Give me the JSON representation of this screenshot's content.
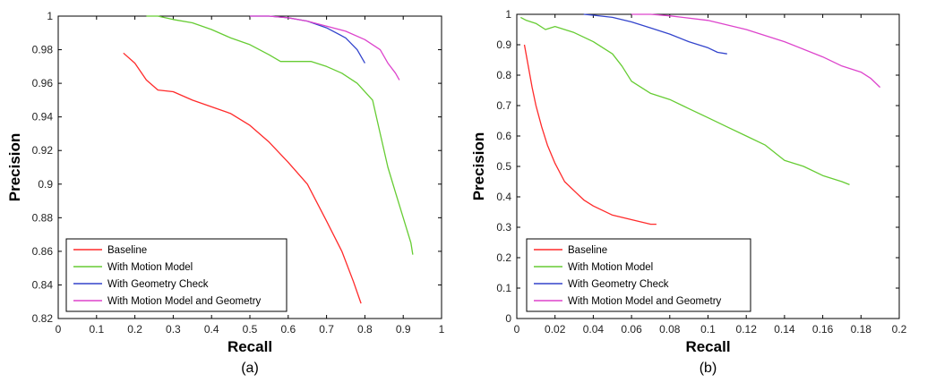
{
  "chart_data": [
    {
      "type": "line",
      "panel_label": "(a)",
      "xlabel": "Recall",
      "ylabel": "Precision",
      "xlim": [
        0,
        1
      ],
      "ylim": [
        0.82,
        1
      ],
      "xticks": [
        0,
        0.1,
        0.2,
        0.3,
        0.4,
        0.5,
        0.6,
        0.7,
        0.8,
        0.9,
        1
      ],
      "xtick_labels": [
        "0",
        "0.1",
        "0.2",
        "0.3",
        "0.4",
        "0.5",
        "0.6",
        "0.7",
        "0.8",
        "0.9",
        "1"
      ],
      "yticks": [
        0.82,
        0.84,
        0.86,
        0.88,
        0.9,
        0.92,
        0.94,
        0.96,
        0.98,
        1
      ],
      "ytick_labels": [
        "0.82",
        "0.84",
        "0.86",
        "0.88",
        "0.9",
        "0.92",
        "0.94",
        "0.96",
        "0.98",
        "1"
      ],
      "grid": false,
      "legend_position": "bottom-left",
      "series": [
        {
          "name": "Baseline",
          "color": "#ff2a2a",
          "x": [
            0.17,
            0.2,
            0.23,
            0.26,
            0.3,
            0.35,
            0.4,
            0.45,
            0.5,
            0.55,
            0.6,
            0.65,
            0.7,
            0.74,
            0.77,
            0.79
          ],
          "y": [
            0.978,
            0.972,
            0.962,
            0.956,
            0.955,
            0.95,
            0.946,
            0.942,
            0.935,
            0.925,
            0.913,
            0.9,
            0.878,
            0.86,
            0.842,
            0.829
          ]
        },
        {
          "name": "With Motion Model",
          "color": "#66cc33",
          "x": [
            0.23,
            0.26,
            0.3,
            0.35,
            0.4,
            0.45,
            0.5,
            0.55,
            0.58,
            0.62,
            0.66,
            0.7,
            0.74,
            0.78,
            0.82,
            0.84,
            0.86,
            0.88,
            0.9,
            0.92,
            0.925
          ],
          "y": [
            1.0,
            1.0,
            0.998,
            0.996,
            0.992,
            0.987,
            0.983,
            0.977,
            0.973,
            0.973,
            0.973,
            0.97,
            0.966,
            0.96,
            0.95,
            0.93,
            0.91,
            0.895,
            0.88,
            0.865,
            0.858
          ]
        },
        {
          "name": "With Geometry Check",
          "color": "#3344cc",
          "x": [
            0.5,
            0.55,
            0.6,
            0.65,
            0.7,
            0.75,
            0.78,
            0.8
          ],
          "y": [
            1.0,
            1.0,
            0.999,
            0.997,
            0.993,
            0.987,
            0.98,
            0.972
          ]
        },
        {
          "name": "With Motion Model and Geometry",
          "color": "#dd44cc",
          "x": [
            0.5,
            0.55,
            0.6,
            0.65,
            0.7,
            0.75,
            0.8,
            0.84,
            0.86,
            0.88,
            0.89
          ],
          "y": [
            1.0,
            1.0,
            0.999,
            0.997,
            0.994,
            0.991,
            0.986,
            0.98,
            0.972,
            0.966,
            0.962
          ]
        }
      ]
    },
    {
      "type": "line",
      "panel_label": "(b)",
      "xlabel": "Recall",
      "ylabel": "Precision",
      "xlim": [
        0,
        0.2
      ],
      "ylim": [
        0,
        1
      ],
      "xticks": [
        0,
        0.02,
        0.04,
        0.06,
        0.08,
        0.1,
        0.12,
        0.14,
        0.16,
        0.18,
        0.2
      ],
      "xtick_labels": [
        "0",
        "0.02",
        "0.04",
        "0.06",
        "0.08",
        "0.1",
        "0.12",
        "0.14",
        "0.16",
        "0.18",
        "0.2"
      ],
      "yticks": [
        0,
        0.1,
        0.2,
        0.3,
        0.4,
        0.5,
        0.6,
        0.7,
        0.8,
        0.9,
        1
      ],
      "ytick_labels": [
        "0",
        "0.1",
        "0.2",
        "0.3",
        "0.4",
        "0.5",
        "0.6",
        "0.7",
        "0.8",
        "0.9",
        "1"
      ],
      "grid": false,
      "legend_position": "bottom-left",
      "series": [
        {
          "name": "Baseline",
          "color": "#ff2a2a",
          "x": [
            0.004,
            0.006,
            0.008,
            0.01,
            0.013,
            0.016,
            0.02,
            0.025,
            0.03,
            0.035,
            0.04,
            0.05,
            0.06,
            0.07,
            0.073
          ],
          "y": [
            0.9,
            0.83,
            0.76,
            0.7,
            0.63,
            0.57,
            0.51,
            0.45,
            0.42,
            0.39,
            0.37,
            0.34,
            0.325,
            0.31,
            0.31
          ]
        },
        {
          "name": "With Motion Model",
          "color": "#66cc33",
          "x": [
            0.002,
            0.005,
            0.01,
            0.015,
            0.02,
            0.03,
            0.04,
            0.05,
            0.055,
            0.06,
            0.07,
            0.08,
            0.09,
            0.1,
            0.11,
            0.12,
            0.13,
            0.14,
            0.15,
            0.16,
            0.17,
            0.174
          ],
          "y": [
            0.99,
            0.98,
            0.97,
            0.95,
            0.96,
            0.94,
            0.91,
            0.87,
            0.83,
            0.78,
            0.74,
            0.72,
            0.69,
            0.66,
            0.63,
            0.6,
            0.57,
            0.52,
            0.5,
            0.47,
            0.45,
            0.44
          ]
        },
        {
          "name": "With Geometry Check",
          "color": "#3344cc",
          "x": [
            0.035,
            0.04,
            0.05,
            0.06,
            0.07,
            0.08,
            0.09,
            0.1,
            0.105,
            0.11
          ],
          "y": [
            1.0,
            0.997,
            0.99,
            0.975,
            0.955,
            0.935,
            0.91,
            0.89,
            0.875,
            0.87
          ]
        },
        {
          "name": "With Motion Model and Geometry",
          "color": "#dd44cc",
          "x": [
            0.06,
            0.07,
            0.08,
            0.1,
            0.12,
            0.14,
            0.16,
            0.17,
            0.18,
            0.185,
            0.19
          ],
          "y": [
            1.0,
            1.0,
            0.995,
            0.98,
            0.95,
            0.91,
            0.86,
            0.83,
            0.81,
            0.79,
            0.76
          ]
        }
      ]
    }
  ]
}
